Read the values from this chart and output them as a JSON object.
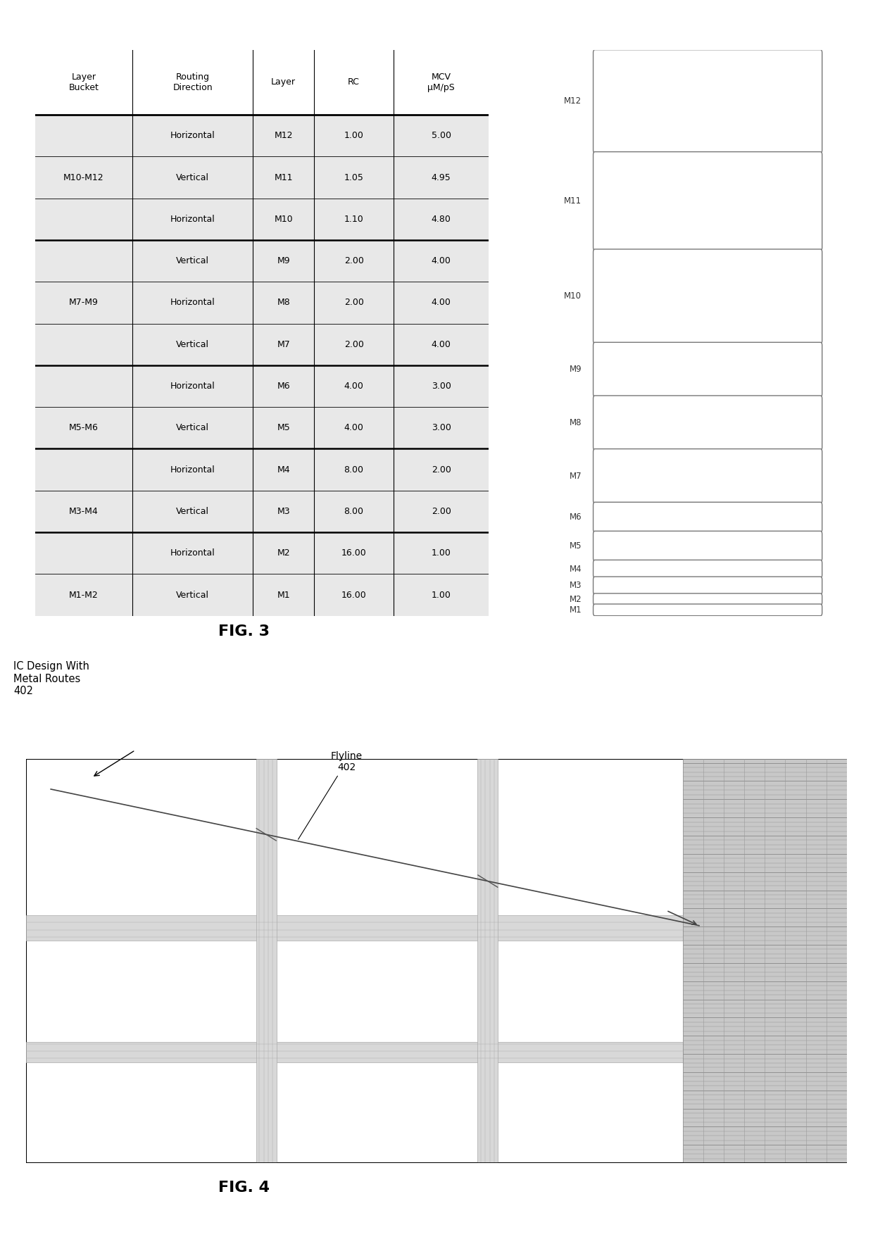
{
  "table_headers": [
    "Layer\nBucket",
    "Routing\nDirection",
    "Layer",
    "RC",
    "MCV\nμM/pS"
  ],
  "table_data": [
    [
      "M10-M12",
      "Horizontal",
      "M12",
      "1.00",
      "5.00"
    ],
    [
      "M10-M12",
      "Vertical",
      "M11",
      "1.05",
      "4.95"
    ],
    [
      "M10-M12",
      "Horizontal",
      "M10",
      "1.10",
      "4.80"
    ],
    [
      "M7-M9",
      "Vertical",
      "M9",
      "2.00",
      "4.00"
    ],
    [
      "M7-M9",
      "Horizontal",
      "M8",
      "2.00",
      "4.00"
    ],
    [
      "M7-M9",
      "Vertical",
      "M7",
      "2.00",
      "4.00"
    ],
    [
      "M5-M6",
      "Horizontal",
      "M6",
      "4.00",
      "3.00"
    ],
    [
      "M5-M6",
      "Vertical",
      "M5",
      "4.00",
      "3.00"
    ],
    [
      "M3-M4",
      "Horizontal",
      "M4",
      "8.00",
      "2.00"
    ],
    [
      "M3-M4",
      "Vertical",
      "M3",
      "8.00",
      "2.00"
    ],
    [
      "M1-M2",
      "Horizontal",
      "M2",
      "16.00",
      "1.00"
    ],
    [
      "M1-M2",
      "Vertical",
      "M1",
      "16.00",
      "1.00"
    ]
  ],
  "row_groups": [
    {
      "bucket": "M10-M12",
      "rows": [
        0,
        1,
        2
      ]
    },
    {
      "bucket": "M7-M9",
      "rows": [
        3,
        4,
        5
      ]
    },
    {
      "bucket": "M5-M6",
      "rows": [
        6,
        7
      ]
    },
    {
      "bucket": "M3-M4",
      "rows": [
        8,
        9
      ]
    },
    {
      "bucket": "M1-M2",
      "rows": [
        10,
        11
      ]
    }
  ],
  "layer_labels": [
    "M12",
    "M11",
    "M10",
    "M9",
    "M8",
    "M7",
    "M6",
    "M5",
    "M4",
    "M3",
    "M2",
    "M1"
  ],
  "cell_bg": "#e8e8e8",
  "bg_color": "#ffffff",
  "fig3_title": "FIG. 3",
  "fig4_title": "FIG. 4",
  "fig4_annotation": "IC Design With\nMetal Routes\n402",
  "flyline_label": "Flyline\n402"
}
